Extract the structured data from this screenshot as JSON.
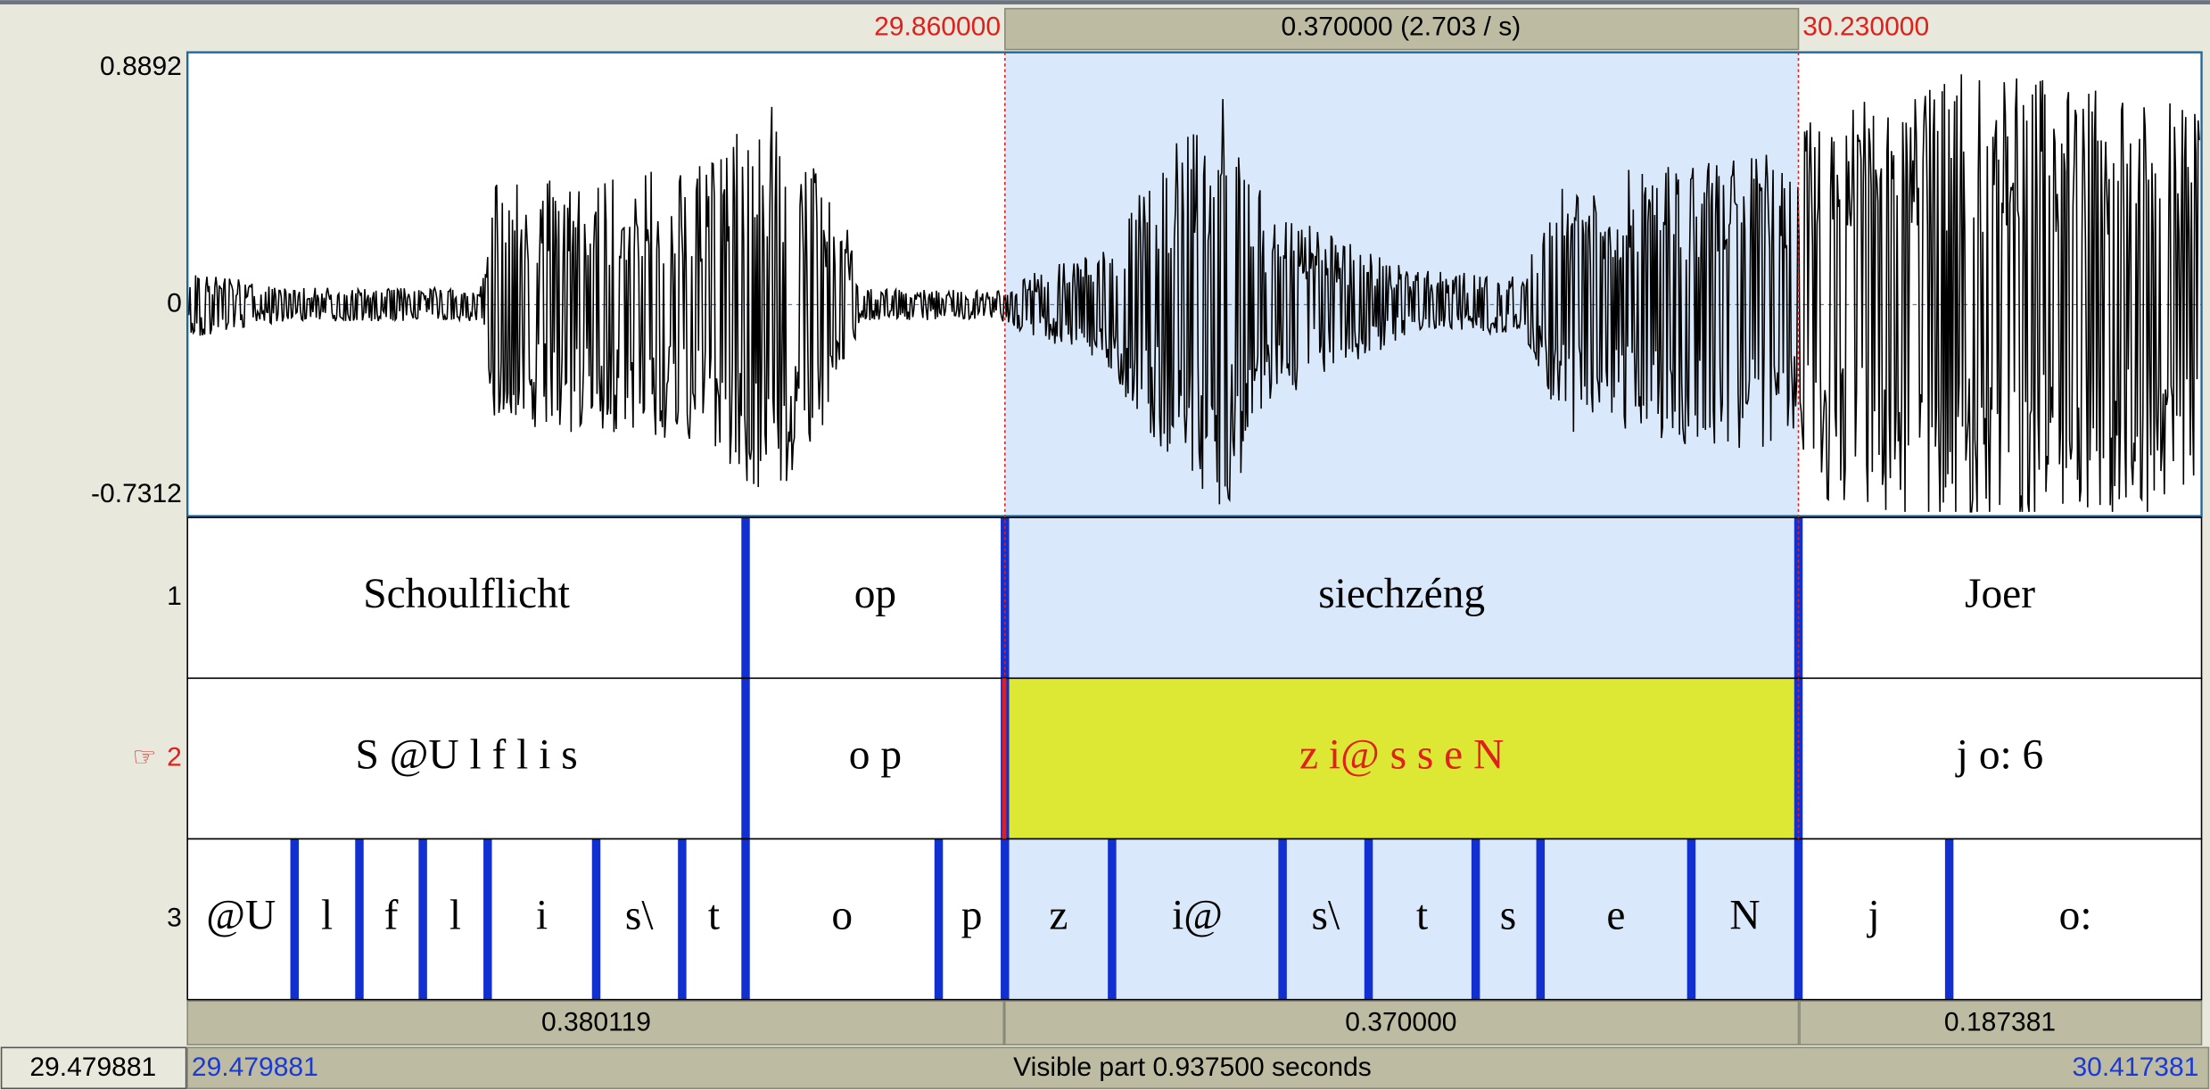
{
  "selection": {
    "start": "29.860000",
    "duration": "0.370000 (2.703 / s)",
    "end": "30.230000"
  },
  "waveform": {
    "y_max": "0.8892",
    "y_zero": "0",
    "y_min": "-0.7312"
  },
  "tiers": [
    {
      "number": "1",
      "intervals": [
        "Schoulflicht",
        "op",
        "siechzéng",
        "Joer"
      ]
    },
    {
      "number": "2",
      "pointer": "☞",
      "intervals": [
        "S @U l f l i s",
        "o p",
        "z i@ s  s e N",
        "j o: 6"
      ]
    },
    {
      "number": "3",
      "intervals": [
        "@U",
        "l",
        "f",
        "l",
        "i",
        "s\\",
        "t",
        "o",
        "p",
        "z",
        "i@",
        "s\\",
        "t",
        "s",
        "e",
        "N",
        "j",
        "o:"
      ]
    }
  ],
  "durations": [
    "0.380119",
    "0.370000",
    "0.187381"
  ],
  "status": {
    "window_start": "29.479881",
    "visible_start": "29.479881",
    "visible_part": "Visible part 0.937500 seconds",
    "visible_end": "30.417381"
  }
}
